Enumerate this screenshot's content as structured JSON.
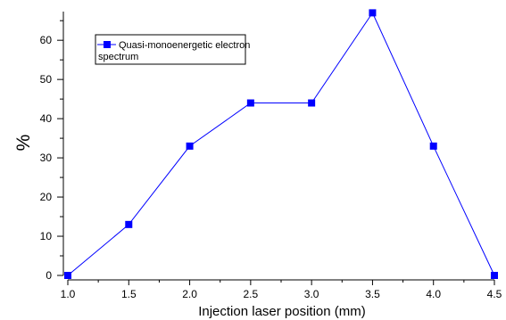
{
  "chart_data": {
    "type": "line",
    "xlabel": "Injection laser position (mm)",
    "ylabel": "%",
    "xlim": [
      1.0,
      4.5
    ],
    "ylim": [
      0,
      68
    ],
    "xticks": [
      "1.0",
      "1.5",
      "2.0",
      "2.5",
      "3.0",
      "3.5",
      "4.0",
      "4.5"
    ],
    "yticks": [
      "0",
      "10",
      "20",
      "30",
      "40",
      "50",
      "60"
    ],
    "grid": false,
    "legend_position": "top-left",
    "series": [
      {
        "name": "Quasi-monoenergetic electron spectrum",
        "name_lines": [
          "Quasi-monoenergetic electron",
          "spectrum"
        ],
        "color": "#0000ff",
        "marker": "square",
        "x": [
          1.0,
          1.5,
          2.0,
          2.5,
          3.0,
          3.5,
          4.0,
          4.5
        ],
        "y": [
          0,
          13,
          33,
          44,
          44,
          67,
          33,
          0
        ]
      }
    ]
  }
}
